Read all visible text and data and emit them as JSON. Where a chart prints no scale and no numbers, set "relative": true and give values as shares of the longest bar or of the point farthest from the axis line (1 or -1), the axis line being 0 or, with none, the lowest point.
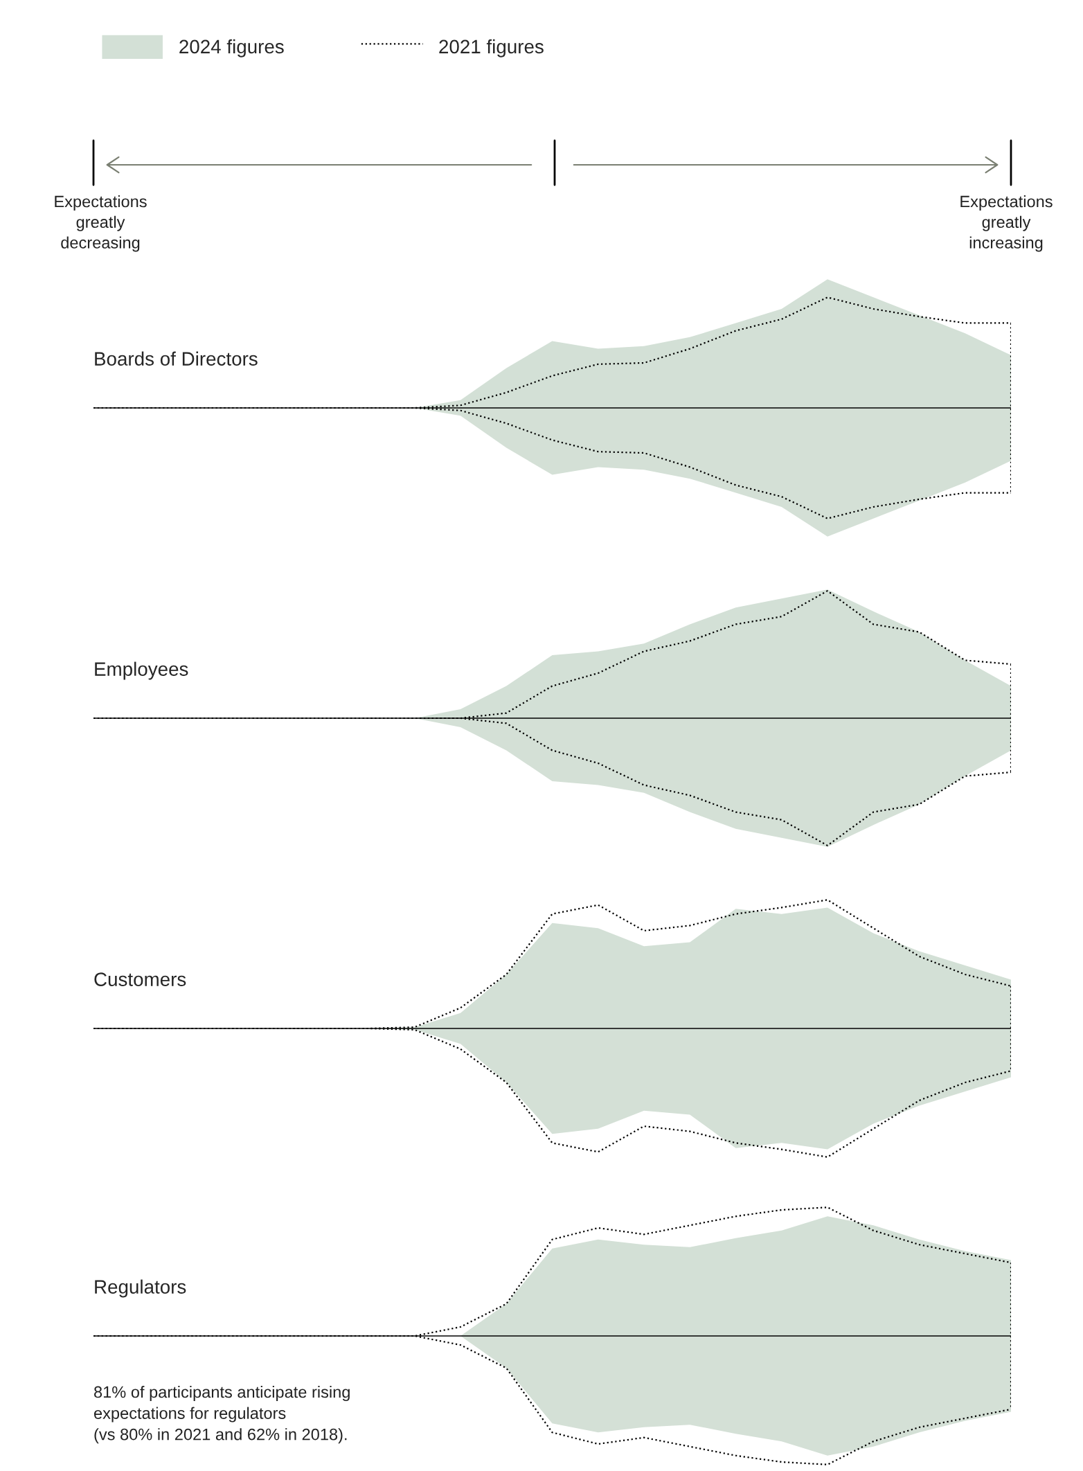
{
  "chart_data": [
    {
      "type": "area",
      "title": "Boards of Directors",
      "relative": true,
      "legend": "top left",
      "ref_lines": [
        {
          "axis": "y",
          "value": 0,
          "color": "#000000"
        }
      ],
      "categories": [
        null,
        null,
        null,
        null,
        null,
        null,
        null,
        null,
        null,
        null,
        null,
        null,
        null,
        null,
        null,
        null,
        null,
        null,
        null,
        null,
        null
      ],
      "annotations": [
        "Expectations\ngreatly\ndecreasing",
        "Expectations\ngreatly\nincreasing"
      ],
      "series": [
        {
          "name": "2024 figures",
          "color": "#d3e0d6",
          "values": [
            0,
            0,
            0,
            0,
            0,
            0,
            0,
            0,
            0.06,
            0.31,
            0.52,
            0.46,
            0.48,
            0.55,
            0.66,
            0.77,
            1,
            0.86,
            0.72,
            0.58,
            0.41
          ]
        },
        {
          "color": "#d4e0d6",
          "values": [
            0,
            0,
            0,
            0,
            0,
            0,
            0,
            0,
            -0.06,
            -0.31,
            -0.52,
            -0.46,
            -0.48,
            -0.55,
            -0.66,
            -0.77,
            -1,
            -0.86,
            -0.72,
            -0.58,
            -0.41
          ]
        },
        {
          "name": "2021 figures",
          "type": "line",
          "line_style": "dotted",
          "color": "#000000",
          "values": [
            0,
            0,
            0,
            0,
            0,
            0,
            0,
            0,
            0.02,
            0.12,
            0.25,
            0.34,
            0.35,
            0.46,
            0.6,
            0.69,
            0.86,
            0.77,
            0.71,
            0.66,
            0.66
          ]
        },
        {
          "type": "line",
          "line_style": "dotted",
          "color": "#000000",
          "values": [
            0,
            0,
            0,
            0,
            0,
            0,
            0,
            0,
            -0.02,
            -0.12,
            -0.25,
            -0.34,
            -0.35,
            -0.46,
            -0.6,
            -0.69,
            -0.86,
            -0.77,
            -0.71,
            -0.66,
            -0.66
          ]
        }
      ]
    },
    {
      "type": "area",
      "title": "Employees",
      "relative": true,
      "ref_lines": [
        {
          "axis": "y",
          "value": 0,
          "color": "#000000"
        }
      ],
      "categories": [
        null,
        null,
        null,
        null,
        null,
        null,
        null,
        null,
        null,
        null,
        null,
        null,
        null,
        null,
        null,
        null,
        null,
        null,
        null,
        null,
        null
      ],
      "series": [
        {
          "color": "#d3e0d6",
          "values": [
            0,
            0,
            0,
            0,
            0,
            0,
            0,
            0,
            0.07,
            0.25,
            0.49,
            0.52,
            0.58,
            0.73,
            0.86,
            0.93,
            1,
            0.83,
            0.67,
            0.45,
            0.25
          ]
        },
        {
          "color": "#d4e0d6",
          "values": [
            0,
            0,
            0,
            0,
            0,
            0,
            0,
            0,
            -0.07,
            -0.25,
            -0.49,
            -0.52,
            -0.58,
            -0.73,
            -0.86,
            -0.93,
            -1,
            -0.83,
            -0.67,
            -0.45,
            -0.25
          ]
        },
        {
          "type": "line",
          "line_style": "dotted",
          "color": "#000000",
          "values": [
            0,
            0,
            0,
            0,
            0,
            0,
            0,
            0,
            0,
            0.04,
            0.25,
            0.35,
            0.52,
            0.6,
            0.73,
            0.79,
            0.99,
            0.73,
            0.67,
            0.45,
            0.42
          ]
        },
        {
          "type": "line",
          "line_style": "dotted",
          "color": "#000000",
          "values": [
            0,
            0,
            0,
            0,
            0,
            0,
            0,
            0,
            0,
            -0.04,
            -0.25,
            -0.35,
            -0.52,
            -0.6,
            -0.73,
            -0.79,
            -0.99,
            -0.73,
            -0.67,
            -0.45,
            -0.42
          ]
        }
      ]
    },
    {
      "type": "area",
      "title": "Customers",
      "relative": true,
      "ref_lines": [
        {
          "axis": "y",
          "value": 0,
          "color": "#000000"
        }
      ],
      "categories": [
        null,
        null,
        null,
        null,
        null,
        null,
        null,
        null,
        null,
        null,
        null,
        null,
        null,
        null,
        null,
        null,
        null,
        null,
        null,
        null,
        null
      ],
      "series": [
        {
          "color": "#d3e0d6",
          "values": [
            0,
            0,
            0,
            0,
            0,
            0,
            0,
            0.01,
            0.12,
            0.42,
            0.82,
            0.78,
            0.64,
            0.67,
            0.93,
            0.89,
            0.94,
            0.74,
            0.6,
            0.49,
            0.38
          ]
        },
        {
          "color": "#d4e0d6",
          "values": [
            0,
            0,
            0,
            0,
            0,
            0,
            0,
            -0.01,
            -0.12,
            -0.42,
            -0.82,
            -0.78,
            -0.64,
            -0.67,
            -0.93,
            -0.89,
            -0.94,
            -0.74,
            -0.6,
            -0.49,
            -0.38
          ]
        },
        {
          "type": "line",
          "line_style": "dotted",
          "color": "#000000",
          "values": [
            0,
            0,
            0,
            0,
            0,
            0,
            0,
            0.01,
            0.16,
            0.42,
            0.89,
            0.96,
            0.76,
            0.8,
            0.89,
            0.94,
            1,
            0.78,
            0.56,
            0.42,
            0.33
          ]
        },
        {
          "type": "line",
          "line_style": "dotted",
          "color": "#000000",
          "values": [
            0,
            0,
            0,
            0,
            0,
            0,
            0,
            -0.01,
            -0.16,
            -0.42,
            -0.89,
            -0.96,
            -0.76,
            -0.8,
            -0.89,
            -0.94,
            -1,
            -0.78,
            -0.56,
            -0.42,
            -0.33
          ]
        }
      ]
    },
    {
      "type": "area",
      "title": "Regulators",
      "relative": true,
      "ref_lines": [
        {
          "axis": "y",
          "value": 0,
          "color": "#000000"
        }
      ],
      "categories": [
        null,
        null,
        null,
        null,
        null,
        null,
        null,
        null,
        null,
        null,
        null,
        null,
        null,
        null,
        null,
        null,
        null,
        null,
        null,
        null,
        null
      ],
      "annotations": [
        "81% of participants anticipate rising\nexpectations for regulators\n(vs 80% in 2021 and 62% in 2018)."
      ],
      "series": [
        {
          "color": "#d3e0d6",
          "values": [
            0,
            0,
            0,
            0,
            0,
            0,
            0,
            0,
            0,
            0.25,
            0.68,
            0.75,
            0.71,
            0.69,
            0.76,
            0.82,
            0.93,
            0.86,
            0.75,
            0.66,
            0.59
          ]
        },
        {
          "color": "#d4e0d6",
          "values": [
            0,
            0,
            0,
            0,
            0,
            0,
            0,
            0,
            0,
            -0.25,
            -0.68,
            -0.75,
            -0.71,
            -0.69,
            -0.76,
            -0.82,
            -0.93,
            -0.86,
            -0.75,
            -0.66,
            -0.59
          ]
        },
        {
          "type": "line",
          "line_style": "dotted",
          "color": "#000000",
          "values": [
            0,
            0,
            0,
            0,
            0,
            0,
            0,
            0,
            0.07,
            0.25,
            0.75,
            0.84,
            0.79,
            0.86,
            0.93,
            0.98,
            1,
            0.82,
            0.71,
            0.64,
            0.57
          ]
        },
        {
          "type": "line",
          "line_style": "dotted",
          "color": "#000000",
          "values": [
            0,
            0,
            0,
            0,
            0,
            0,
            0,
            0,
            -0.07,
            -0.25,
            -0.75,
            -0.84,
            -0.79,
            -0.86,
            -0.93,
            -0.98,
            -1,
            -0.82,
            -0.71,
            -0.64,
            -0.57
          ]
        }
      ]
    }
  ]
}
